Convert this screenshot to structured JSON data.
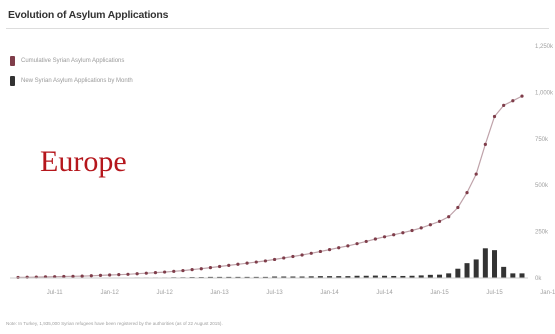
{
  "chart_data": {
    "type": "line",
    "title": "Evolution of Asylum Applications",
    "legend": [
      {
        "name": "Cumulative Syrian Asylum Applications",
        "color": "#7f3d4a",
        "kind": "line"
      },
      {
        "name": "New Syrian Asylum Applications by Month",
        "color": "#333333",
        "kind": "bar"
      }
    ],
    "x_ticks": [
      "Jul-11",
      "Jan-12",
      "Jul-12",
      "Jan-13",
      "Jul-13",
      "Jan-14",
      "Jul-14",
      "Jan-15",
      "Jul-15",
      "Jan-16"
    ],
    "y_ticks": [
      "0k",
      "250k",
      "500k",
      "750k",
      "1,000k",
      "1,250k"
    ],
    "ylim": [
      0,
      1250
    ],
    "cumulative": [
      3,
      4,
      5,
      6,
      7,
      8,
      9,
      10,
      12,
      14,
      16,
      18,
      20,
      23,
      26,
      29,
      32,
      36,
      40,
      45,
      50,
      56,
      62,
      68,
      74,
      80,
      86,
      92,
      100,
      108,
      116,
      124,
      133,
      143,
      153,
      163,
      173,
      185,
      197,
      210,
      222,
      233,
      244,
      256,
      270,
      287,
      305,
      330,
      380,
      460,
      560,
      720,
      870,
      930,
      955,
      980
    ],
    "monthly": [
      1,
      1,
      1,
      1,
      1,
      1,
      1,
      1,
      2,
      2,
      2,
      2,
      2,
      3,
      3,
      3,
      3,
      4,
      4,
      5,
      5,
      6,
      6,
      6,
      6,
      6,
      6,
      6,
      8,
      8,
      8,
      8,
      9,
      10,
      10,
      10,
      10,
      12,
      12,
      13,
      12,
      11,
      11,
      12,
      14,
      17,
      18,
      25,
      50,
      80,
      100,
      160,
      150,
      60,
      25,
      25
    ],
    "legend_placement": "top-left",
    "grid": false
  },
  "overlay_text": "Europe",
  "footnote": "Note: In Turkey, 1,935,000 Syrian refugees have been registered by the authorities (as of 22 August 2015)."
}
